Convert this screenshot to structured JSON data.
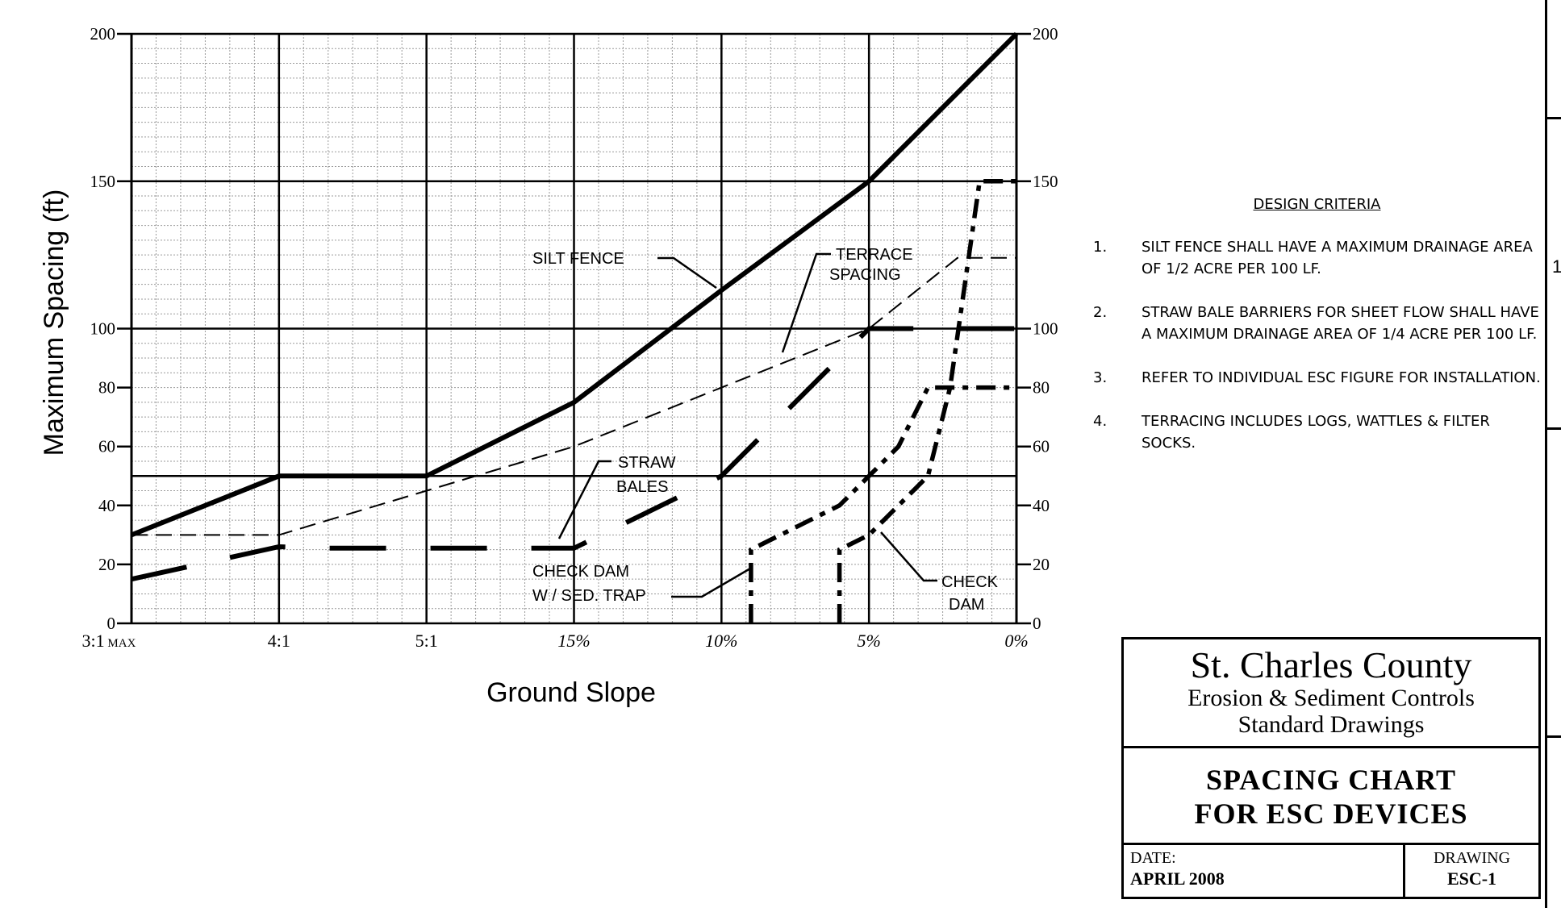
{
  "chart_data": {
    "type": "line",
    "xlabel": "Ground Slope",
    "ylabel": "Maximum Spacing (ft)",
    "x_ticks": [
      "3:1",
      "4:1",
      "5:1",
      "15%",
      "10%",
      "5%",
      "0%"
    ],
    "x_first_suffix": "MAX",
    "y_ticks": [
      0,
      20,
      40,
      60,
      80,
      100,
      150,
      200
    ],
    "ylim": [
      0,
      200
    ],
    "grid": true,
    "series": [
      {
        "name": "SILT FENCE",
        "style": "solid-thick",
        "points": [
          [
            0,
            30
          ],
          [
            1,
            50
          ],
          [
            2,
            50
          ],
          [
            3,
            75
          ],
          [
            4,
            113
          ],
          [
            5,
            150
          ],
          [
            6,
            200
          ]
        ]
      },
      {
        "name": "TERRACE SPACING",
        "style": "dashed-thin",
        "points": [
          [
            0,
            30
          ],
          [
            1,
            30
          ],
          [
            3,
            60
          ],
          [
            5,
            100
          ],
          [
            5.6,
            124
          ],
          [
            6,
            124
          ]
        ]
      },
      {
        "name": "STRAW BALES",
        "style": "long-dash",
        "points": [
          [
            0,
            15
          ],
          [
            1,
            26
          ],
          [
            1.3,
            25.5
          ],
          [
            3,
            25.5
          ],
          [
            4,
            50
          ],
          [
            5,
            100
          ],
          [
            6,
            100
          ]
        ]
      },
      {
        "name": "CHECK DAM W / SED. TRAP",
        "style": "dash-dot",
        "points": [
          [
            4.2,
            0
          ],
          [
            4.2,
            25
          ],
          [
            4.8,
            40
          ],
          [
            5,
            50
          ],
          [
            5.2,
            60
          ],
          [
            5.4,
            80
          ],
          [
            6,
            80
          ]
        ]
      },
      {
        "name": "CHECK DAM",
        "style": "dash-dot",
        "points": [
          [
            4.8,
            0
          ],
          [
            4.8,
            25
          ],
          [
            5,
            30
          ],
          [
            5.4,
            50
          ],
          [
            5.55,
            80
          ],
          [
            5.75,
            150
          ],
          [
            6,
            150
          ]
        ]
      }
    ],
    "labels": {
      "silt_fence": "SILT FENCE",
      "terrace_1": "TERRACE",
      "terrace_2": "SPACING",
      "straw_1": "STRAW",
      "straw_2": "BALES",
      "trap_1": "CHECK DAM",
      "trap_2": "W / SED. TRAP",
      "check_1": "CHECK",
      "check_2": "DAM"
    }
  },
  "criteria": {
    "title": "DESIGN CRITERIA",
    "items": [
      {
        "num": "1.",
        "text": "SILT FENCE SHALL HAVE A MAXIMUM DRAINAGE AREA OF 1/2 ACRE PER 100 LF."
      },
      {
        "num": "2.",
        "text": "STRAW BALE BARRIERS FOR SHEET FLOW SHALL HAVE A MAXIMUM DRAINAGE AREA OF 1/4 ACRE PER 100 LF."
      },
      {
        "num": "3.",
        "text": "REFER TO INDIVIDUAL ESC FIGURE FOR INSTALLATION."
      },
      {
        "num": "4.",
        "text": "TERRACING INCLUDES LOGS, WATTLES & FILTER SOCKS."
      }
    ]
  },
  "titleblock": {
    "county": "St. Charles County",
    "program": "Erosion & Sediment Controls",
    "series": "Standard Drawings",
    "drawing_title_1": "SPACING CHART",
    "drawing_title_2": "FOR ESC DEVICES",
    "date_label": "DATE:",
    "date_value": "APRIL 2008",
    "drawing_label": "DRAWING",
    "drawing_value": "ESC-1"
  },
  "edge_glyph": "1"
}
